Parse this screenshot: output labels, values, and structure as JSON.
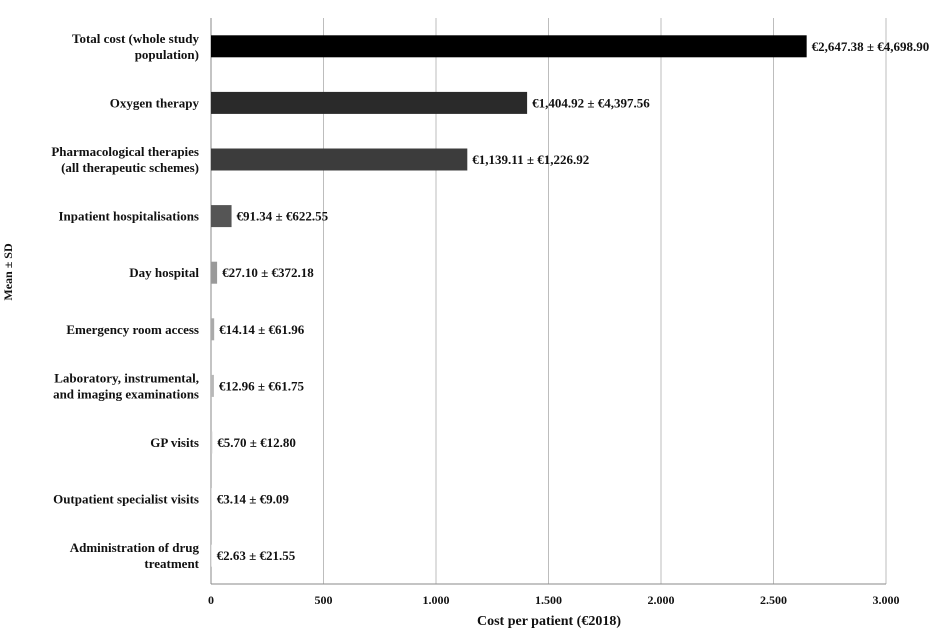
{
  "chart_data": {
    "type": "bar",
    "orientation": "horizontal",
    "title": "",
    "xlabel": "Cost per patient (€2018)",
    "ylabel": "Mean ± SD",
    "xlim": [
      0,
      3000
    ],
    "xticks": [
      0,
      500,
      1000,
      1500,
      2000,
      2500,
      3000
    ],
    "xtick_labels": [
      "0",
      "500",
      "1.000",
      "1.500",
      "2.000",
      "2.500",
      "3.000"
    ],
    "grid": "vertical",
    "legend": "none",
    "categories": [
      "Total cost (whole study population)",
      "Oxygen therapy",
      "Pharmacological therapies (all therapeutic schemes)",
      "Inpatient hospitalisations",
      "Day hospital",
      "Emergency room access",
      "Laboratory, instrumental, and imaging examinations",
      "GP visits",
      "Outpatient specialist visits",
      "Administration of drug treatment"
    ],
    "category_lines": [
      [
        "Total cost (whole study",
        "population)"
      ],
      [
        "Oxygen therapy"
      ],
      [
        "Pharmacological therapies",
        "(all therapeutic schemes)"
      ],
      [
        "Inpatient hospitalisations"
      ],
      [
        "Day hospital"
      ],
      [
        "Emergency room access"
      ],
      [
        "Laboratory, instrumental,",
        "and imaging examinations"
      ],
      [
        "GP visits"
      ],
      [
        "Outpatient specialist visits"
      ],
      [
        "Administration of drug",
        "treatment"
      ]
    ],
    "values": [
      2647.38,
      1404.92,
      1139.11,
      91.34,
      27.1,
      14.14,
      12.96,
      5.7,
      3.14,
      2.63
    ],
    "sd": [
      4698.9,
      4397.56,
      1226.92,
      622.55,
      372.18,
      61.96,
      61.75,
      12.8,
      9.09,
      21.55
    ],
    "data_labels": [
      "€2,647.38 ± €4,698.90",
      "€1,404.92 ± €4,397.56",
      "€1,139.11 ± €1,226.92",
      "€91.34 ± €622.55",
      "€27.10 ± €372.18",
      "€14.14 ± €61.96",
      "€12.96 ± €61.75",
      "€5.70 ± €12.80",
      "€3.14 ± €9.09",
      "€2.63 ± €21.55"
    ],
    "colors": [
      "#000000",
      "#2a2a2a",
      "#3c3c3c",
      "#555555",
      "#9a9a9a",
      "#aaaaaa",
      "#b8b8b8",
      "#c8c8c8",
      "#d0d0d0",
      "#d8d8d8"
    ]
  }
}
